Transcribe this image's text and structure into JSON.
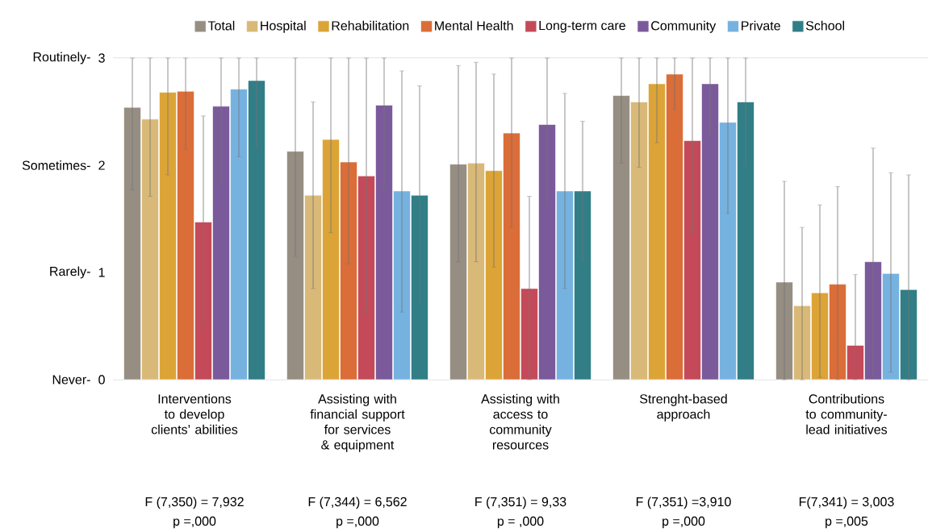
{
  "chart_data": {
    "type": "bar",
    "categories": [
      "Interventions to develop clients’ abilities",
      "Assisting with financial support for services & equipment",
      "Assisting with access to community resources",
      "Strenght-based approach",
      "Contributions to community-lead initiatives"
    ],
    "series": [
      {
        "name": "Total",
        "color": "#968e82",
        "values": [
          2.54,
          2.13,
          2.01,
          2.65,
          0.91
        ],
        "errors": [
          [
            1.77,
            3
          ],
          [
            1.15,
            3
          ],
          [
            1.1,
            2.93
          ],
          [
            2.02,
            3
          ],
          [
            0,
            1.85
          ]
        ]
      },
      {
        "name": "Hospital",
        "color": "#d9b978",
        "values": [
          2.43,
          1.72,
          2.02,
          2.59,
          0.69
        ],
        "errors": [
          [
            1.71,
            3
          ],
          [
            0.85,
            2.59
          ],
          [
            1.1,
            2.96
          ],
          [
            1.98,
            3
          ],
          [
            0,
            1.42
          ]
        ]
      },
      {
        "name": "Rehabilitation",
        "color": "#dca437",
        "values": [
          2.68,
          2.24,
          1.95,
          2.76,
          0.81
        ],
        "errors": [
          [
            1.91,
            3
          ],
          [
            1.37,
            3
          ],
          [
            1.05,
            2.85
          ],
          [
            2.21,
            3
          ],
          [
            0.02,
            1.63
          ]
        ]
      },
      {
        "name": "Mental Health",
        "color": "#db6d38",
        "values": [
          2.69,
          2.03,
          2.3,
          2.85,
          0.89
        ],
        "errors": [
          [
            2.15,
            3
          ],
          [
            1.08,
            3
          ],
          [
            1.42,
            3
          ],
          [
            2.52,
            3
          ],
          [
            0,
            1.8
          ]
        ]
      },
      {
        "name": "Long-term care",
        "color": "#c44a59",
        "values": [
          1.47,
          1.9,
          0.85,
          2.23,
          0.32
        ],
        "errors": [
          [
            0.5,
            2.46
          ],
          [
            0.61,
            3
          ],
          [
            0,
            1.71
          ],
          [
            1.37,
            3
          ],
          [
            0,
            0.98
          ]
        ]
      },
      {
        "name": "Community",
        "color": "#7b5a9b",
        "values": [
          2.55,
          2.56,
          2.38,
          2.76,
          1.1
        ],
        "errors": [
          [
            1.82,
            3
          ],
          [
            1.78,
            3
          ],
          [
            1.63,
            3
          ],
          [
            2.29,
            3
          ],
          [
            0.03,
            2.16
          ]
        ]
      },
      {
        "name": "Private",
        "color": "#76b2e0",
        "values": [
          2.71,
          1.76,
          1.76,
          2.4,
          0.99
        ],
        "errors": [
          [
            2.08,
            3
          ],
          [
            0.63,
            2.88
          ],
          [
            0.85,
            2.67
          ],
          [
            1.55,
            3
          ],
          [
            0.07,
            1.93
          ]
        ]
      },
      {
        "name": "School",
        "color": "#317e87",
        "values": [
          2.79,
          1.72,
          1.76,
          2.59,
          0.84
        ],
        "errors": [
          [
            2.16,
            3
          ],
          [
            0.71,
            2.74
          ],
          [
            1.1,
            2.41
          ],
          [
            1.98,
            3
          ],
          [
            0,
            1.91
          ]
        ]
      }
    ],
    "ylim": [
      0,
      3
    ],
    "yticks": [
      0,
      1,
      2,
      3
    ],
    "legend": "top",
    "annotations": [
      "F (7,350) = 7,932",
      "p =,000",
      "F (7,344) = 6,562",
      "p =,000",
      "F (7,351) = 9,33",
      "p = ,000",
      "F (7,351) =3,910",
      "p =,000",
      "F(7,341) = 3,003",
      "p =,005",
      "Never-",
      "Rarely-",
      "Sometimes-",
      "Routinely-"
    ]
  }
}
